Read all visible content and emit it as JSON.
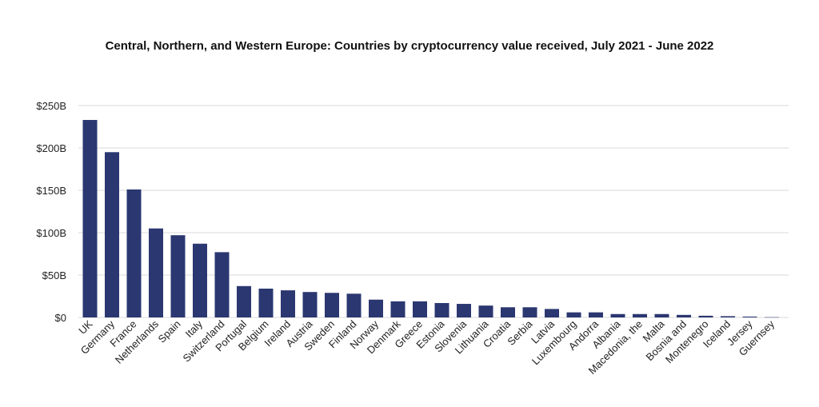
{
  "chart_data": {
    "type": "bar",
    "title": "Central, Northern, and Western Europe: Countries by cryptocurrency value received, July 2021 - June 2022",
    "xlabel": "",
    "ylabel": "",
    "ylim": [
      0,
      250
    ],
    "y_ticks": [
      "$0",
      "$50B",
      "$100B",
      "$150B",
      "$200B",
      "$250B"
    ],
    "y_tick_values": [
      0,
      50,
      100,
      150,
      200,
      250
    ],
    "grid": true,
    "bar_color": "#2b3770",
    "categories": [
      "UK",
      "Germany",
      "France",
      "Netherlands",
      "Spain",
      "Italy",
      "Switzerland",
      "Portugal",
      "Belgium",
      "Ireland",
      "Austria",
      "Sweden",
      "Finland",
      "Norway",
      "Denmark",
      "Greece",
      "Estonia",
      "Slovenia",
      "Lithuania",
      "Croatia",
      "Serbia",
      "Latvia",
      "Luxembourg",
      "Andorra",
      "Albania",
      "Macedonia, the",
      "Malta",
      "Bosnia and",
      "Montenegro",
      "Iceland",
      "Jersey",
      "Guernsey"
    ],
    "values": [
      233,
      195,
      151,
      105,
      97,
      87,
      77,
      37,
      34,
      32,
      30,
      29,
      28,
      21,
      19,
      19,
      17,
      16,
      14,
      12,
      12,
      10,
      6,
      6,
      4,
      4,
      4,
      3,
      2,
      1.5,
      1,
      0.3
    ]
  }
}
